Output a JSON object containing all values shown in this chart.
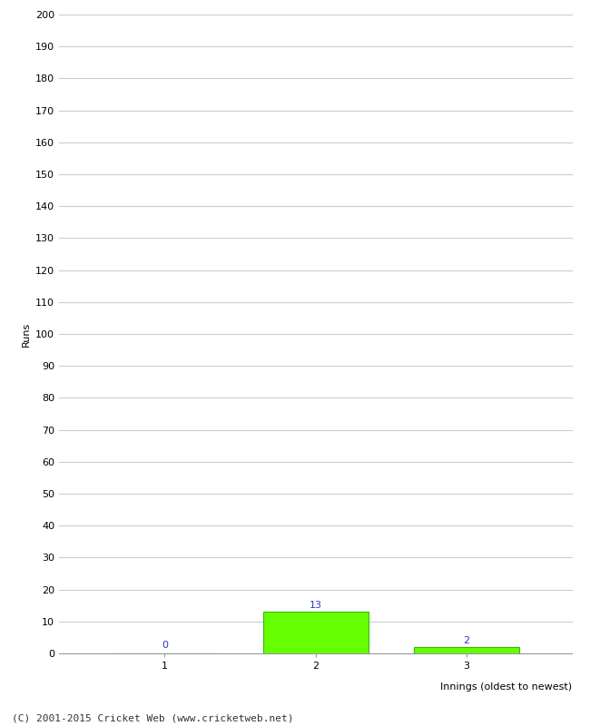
{
  "xlabel": "Innings (oldest to newest)",
  "ylabel": "Runs",
  "categories": [
    "1",
    "2",
    "3"
  ],
  "values": [
    0,
    13,
    2
  ],
  "bar_color": "#66ff00",
  "bar_edge_color": "#33bb00",
  "value_labels": [
    "0",
    "13",
    "2"
  ],
  "value_label_color": "#3333cc",
  "ylim": [
    0,
    200
  ],
  "yticks": [
    0,
    10,
    20,
    30,
    40,
    50,
    60,
    70,
    80,
    90,
    100,
    110,
    120,
    130,
    140,
    150,
    160,
    170,
    180,
    190,
    200
  ],
  "grid_color": "#cccccc",
  "background_color": "#ffffff",
  "footer": "(C) 2001-2015 Cricket Web (www.cricketweb.net)",
  "ylabel_fontsize": 8,
  "xlabel_fontsize": 8,
  "tick_fontsize": 8,
  "value_label_fontsize": 8,
  "footer_fontsize": 8
}
